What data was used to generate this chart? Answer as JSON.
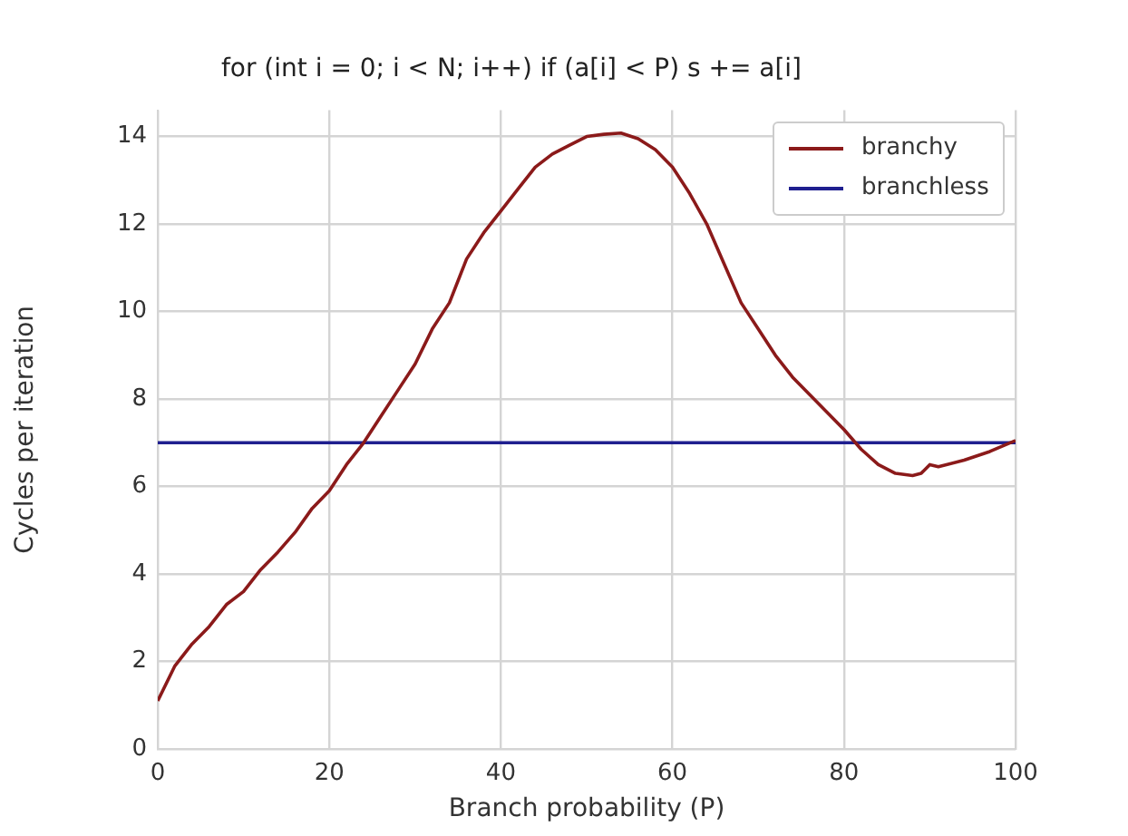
{
  "chart_data": {
    "type": "line",
    "title": "for (int i = 0; i < N; i++) if (a[i] < P) s += a[i]",
    "xlabel": "Branch probability (P)",
    "ylabel": "Cycles per iteration",
    "xlim": [
      0,
      100
    ],
    "xticks": [
      0,
      20,
      40,
      60,
      80,
      100
    ],
    "ylim": [
      0,
      14.6
    ],
    "yticks": [
      0,
      2,
      4,
      6,
      8,
      10,
      12,
      14
    ],
    "grid": true,
    "legend": "top right",
    "marker": "none",
    "line_style": "solid",
    "series": [
      {
        "name": "branchy",
        "color": "#8b1a1a",
        "x": [
          0,
          2,
          4,
          6,
          8,
          10,
          12,
          14,
          16,
          18,
          20,
          22,
          24,
          26,
          28,
          30,
          32,
          34,
          36,
          38,
          40,
          42,
          44,
          46,
          48,
          50,
          52,
          54,
          56,
          58,
          60,
          62,
          64,
          66,
          68,
          70,
          72,
          74,
          76,
          78,
          80,
          82,
          84,
          86,
          88,
          89,
          90,
          91,
          94,
          97,
          100
        ],
        "values": [
          1.1,
          1.9,
          2.4,
          2.8,
          3.3,
          3.6,
          4.1,
          4.5,
          4.95,
          5.5,
          5.9,
          6.5,
          7.0,
          7.6,
          8.2,
          8.8,
          9.6,
          10.2,
          11.2,
          11.8,
          12.3,
          12.8,
          13.3,
          13.6,
          13.8,
          14.0,
          14.05,
          14.08,
          13.95,
          13.7,
          13.3,
          12.7,
          12.0,
          11.1,
          10.2,
          9.6,
          9.0,
          8.5,
          8.1,
          7.7,
          7.3,
          6.85,
          6.5,
          6.3,
          6.25,
          6.3,
          6.5,
          6.45,
          6.6,
          6.8,
          7.05
        ]
      },
      {
        "name": "branchless",
        "color": "#1f1f8f",
        "x": [
          0,
          100
        ],
        "values": [
          7.0,
          7.0
        ]
      }
    ]
  }
}
